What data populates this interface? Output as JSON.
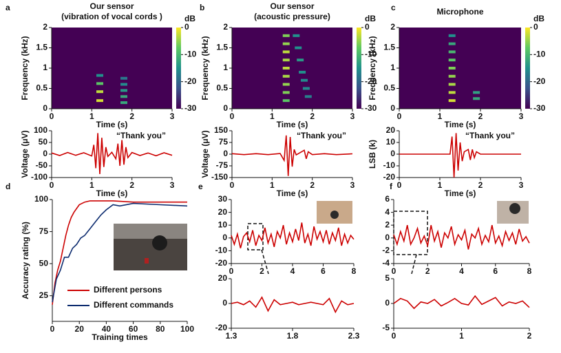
{
  "chart_data": [
    {
      "type": "heatmap",
      "panel_label": "a",
      "title": "Our sensor",
      "subtitle": "(vibration of vocal cords )",
      "xlabel": "Time (s)",
      "ylabel": "Frequency (kHz)",
      "xlim": [
        0,
        3
      ],
      "xticks": [
        0,
        1,
        2,
        3
      ],
      "ylim": [
        0,
        2
      ],
      "yticks": [
        0,
        0.5,
        1,
        1.5,
        2
      ],
      "colorbar_label": "dB",
      "clim": [
        -30,
        0
      ],
      "cticks": [
        0,
        -10,
        -20,
        -30
      ],
      "points": {
        "x": [
          1.2,
          1.2,
          1.2,
          1.2,
          1.8,
          1.8,
          1.8,
          1.8,
          1.8
        ],
        "y": [
          0.2,
          0.42,
          0.62,
          0.82,
          0.15,
          0.3,
          0.45,
          0.6,
          0.75
        ],
        "values": [
          -2,
          -3,
          -8,
          -15,
          -12,
          -12,
          -14,
          -16,
          -18
        ]
      }
    },
    {
      "type": "line",
      "xlabel": "Time (s)",
      "ylabel": "Voltage (μV)",
      "annotation": "“Thank you”",
      "color": "#cc0000",
      "xlim": [
        0,
        3
      ],
      "xticks": [
        0,
        1,
        2,
        3
      ],
      "ylim": [
        -100,
        100
      ],
      "yticks": [
        -100,
        -50,
        0,
        50,
        100
      ],
      "x": [
        0,
        0.2,
        0.4,
        0.6,
        0.8,
        1.0,
        1.05,
        1.1,
        1.15,
        1.2,
        1.25,
        1.3,
        1.35,
        1.4,
        1.5,
        1.6,
        1.65,
        1.7,
        1.75,
        1.8,
        1.85,
        1.9,
        2.0,
        2.2,
        2.4,
        2.6,
        2.8,
        3.0
      ],
      "values": [
        5,
        -6,
        7,
        -5,
        6,
        -8,
        40,
        -60,
        90,
        -85,
        70,
        -55,
        30,
        -10,
        8,
        -20,
        45,
        -50,
        60,
        -45,
        30,
        -15,
        7,
        -6,
        5,
        -7,
        6,
        -5
      ]
    },
    {
      "type": "heatmap",
      "panel_label": "b",
      "title": "Our sensor",
      "subtitle": "(acoustic pressure)",
      "xlabel": "Time (s)",
      "ylabel": "Frequency (kHz)",
      "xlim": [
        0,
        3
      ],
      "xticks": [
        0,
        1,
        2,
        3
      ],
      "ylim": [
        0,
        2
      ],
      "yticks": [
        0,
        0.5,
        1,
        1.5,
        2
      ],
      "colorbar_label": "dB",
      "clim": [
        -30,
        0
      ],
      "cticks": [
        0,
        -10,
        -20,
        -30
      ],
      "points": {
        "x": [
          1.35,
          1.35,
          1.35,
          1.35,
          1.35,
          1.35,
          1.35,
          1.35,
          1.35,
          1.6,
          1.65,
          1.7,
          1.75,
          1.8,
          1.85,
          1.9
        ],
        "y": [
          0.2,
          0.4,
          0.6,
          0.8,
          1.0,
          1.2,
          1.4,
          1.6,
          1.8,
          1.8,
          1.5,
          1.2,
          0.9,
          0.7,
          0.5,
          0.3
        ],
        "values": [
          -8,
          -6,
          -5,
          -4,
          -3,
          -4,
          -3,
          -5,
          -6,
          -15,
          -15,
          -14,
          -15,
          -16,
          -16,
          -17
        ]
      }
    },
    {
      "type": "line",
      "xlabel": "Time (s)",
      "ylabel": "Voltage (μV)",
      "annotation": "“Thank you”",
      "color": "#cc0000",
      "xlim": [
        0,
        3
      ],
      "xticks": [
        0,
        1,
        2,
        3
      ],
      "ylim": [
        -150,
        150
      ],
      "yticks": [
        -150,
        -75,
        0,
        75,
        150
      ],
      "x": [
        0,
        0.3,
        0.6,
        0.9,
        1.2,
        1.3,
        1.35,
        1.4,
        1.45,
        1.5,
        1.55,
        1.6,
        1.8,
        1.85,
        1.9,
        2.0,
        2.3,
        2.6,
        3.0
      ],
      "values": [
        3,
        -3,
        3,
        -3,
        4,
        -40,
        120,
        -140,
        110,
        -80,
        30,
        -5,
        25,
        -30,
        15,
        -3,
        3,
        -3,
        2
      ]
    },
    {
      "type": "heatmap",
      "panel_label": "c",
      "title": "Microphone",
      "xlabel": "Time (s)",
      "ylabel": "Frequency (kHz)",
      "xlim": [
        0,
        3
      ],
      "xticks": [
        0,
        1,
        2,
        3
      ],
      "ylim": [
        0,
        2
      ],
      "yticks": [
        0,
        0.5,
        1,
        1.5,
        2
      ],
      "colorbar_label": "dB",
      "clim": [
        -30,
        0
      ],
      "cticks": [
        0,
        -10,
        -20,
        -30
      ],
      "points": {
        "x": [
          1.3,
          1.3,
          1.3,
          1.3,
          1.3,
          1.3,
          1.3,
          1.3,
          1.3,
          1.9,
          1.9
        ],
        "y": [
          0.2,
          0.4,
          0.6,
          0.8,
          1.0,
          1.2,
          1.4,
          1.6,
          1.8,
          0.25,
          0.4
        ],
        "values": [
          -2,
          -3,
          -4,
          -5,
          -6,
          -8,
          -10,
          -12,
          -15,
          -12,
          -13
        ]
      }
    },
    {
      "type": "line",
      "xlabel": "Time (s)",
      "ylabel": "LSB (k)",
      "annotation": "“Thank you”",
      "color": "#cc0000",
      "xlim": [
        0,
        3
      ],
      "xticks": [
        0,
        1,
        2,
        3
      ],
      "ylim": [
        -20,
        20
      ],
      "yticks": [
        -20,
        -10,
        0,
        10,
        20
      ],
      "x": [
        0,
        0.5,
        1.0,
        1.25,
        1.3,
        1.35,
        1.4,
        1.45,
        1.5,
        1.55,
        1.6,
        1.7,
        1.75,
        1.8,
        1.85,
        1.9,
        2.0,
        2.5,
        3.0
      ],
      "values": [
        0,
        0,
        0,
        0,
        15,
        -20,
        18,
        -14,
        10,
        -6,
        2,
        4,
        -5,
        4,
        -3,
        2,
        0,
        0,
        0
      ]
    },
    {
      "type": "line",
      "panel_label": "d",
      "xlabel": "Training times",
      "ylabel": "Accuracy rating (%)",
      "legend": "lower center",
      "xlim": [
        0,
        100
      ],
      "xticks": [
        0,
        20,
        40,
        60,
        80,
        100
      ],
      "ylim": [
        5,
        100
      ],
      "yticks": [
        25,
        50,
        75,
        100
      ],
      "series": [
        {
          "name": "Different persons",
          "color": "#cc0000",
          "x": [
            0,
            2,
            4,
            6,
            8,
            10,
            12,
            14,
            16,
            18,
            20,
            24,
            28,
            35,
            45,
            60,
            80,
            100
          ],
          "values": [
            18,
            35,
            45,
            52,
            62,
            72,
            80,
            86,
            90,
            93,
            96,
            98,
            99,
            99,
            99,
            98,
            98,
            98
          ]
        },
        {
          "name": "Different commands",
          "color": "#0b2a6e",
          "x": [
            0,
            3,
            6,
            9,
            12,
            15,
            18,
            21,
            24,
            27,
            30,
            33,
            36,
            40,
            45,
            50,
            60,
            80,
            100
          ],
          "values": [
            20,
            38,
            45,
            55,
            55,
            62,
            65,
            70,
            72,
            76,
            80,
            84,
            88,
            92,
            96,
            95,
            97,
            96,
            95
          ]
        }
      ]
    },
    {
      "type": "line",
      "panel_label": "e",
      "color": "#cc0000",
      "xlim": [
        0,
        8
      ],
      "xticks": [
        0,
        2,
        4,
        6,
        8
      ],
      "ylim": [
        -20,
        30
      ],
      "yticks": [
        -20,
        -10,
        0,
        10,
        20,
        30
      ],
      "x": [
        0,
        0.2,
        0.4,
        0.6,
        0.8,
        1,
        1.2,
        1.4,
        1.6,
        1.8,
        2,
        2.2,
        2.4,
        2.6,
        2.8,
        3,
        3.2,
        3.4,
        3.6,
        3.8,
        4,
        4.2,
        4.4,
        4.6,
        4.8,
        5,
        5.2,
        5.4,
        5.6,
        5.8,
        6,
        6.2,
        6.4,
        6.6,
        6.8,
        7,
        7.2,
        7.4,
        7.6,
        7.8,
        8
      ],
      "values": [
        2,
        -5,
        3,
        -8,
        1,
        4,
        -3,
        6,
        -6,
        2,
        -2,
        8,
        -4,
        3,
        -7,
        5,
        0,
        10,
        -5,
        4,
        -3,
        7,
        -2,
        12,
        -4,
        3,
        -6,
        9,
        -1,
        5,
        -3,
        6,
        -5,
        4,
        -2,
        8,
        -6,
        3,
        -4,
        2,
        -1
      ]
    },
    {
      "type": "line",
      "color": "#cc0000",
      "xlim": [
        1.3,
        2.3
      ],
      "xticks": [
        1.3,
        1.8,
        2.3
      ],
      "ylim": [
        -20,
        20
      ],
      "yticks": [
        -20,
        0,
        20
      ],
      "x": [
        1.3,
        1.35,
        1.4,
        1.45,
        1.5,
        1.55,
        1.6,
        1.65,
        1.7,
        1.75,
        1.8,
        1.85,
        1.9,
        1.95,
        2.0,
        2.05,
        2.1,
        2.15,
        2.2,
        2.25,
        2.3
      ],
      "values": [
        0,
        1,
        -1,
        2,
        -3,
        5,
        -6,
        3,
        -1,
        0,
        1,
        -1,
        0,
        1,
        0,
        -1,
        4,
        -7,
        2,
        -1,
        0
      ]
    },
    {
      "type": "line",
      "panel_label": "f",
      "color": "#cc0000",
      "xlim": [
        0,
        8
      ],
      "xticks": [
        0,
        2,
        4,
        6,
        8
      ],
      "ylim": [
        -4,
        6
      ],
      "yticks": [
        -4,
        -2,
        0,
        2,
        4,
        6
      ],
      "x": [
        0,
        0.2,
        0.4,
        0.6,
        0.8,
        1,
        1.2,
        1.4,
        1.6,
        1.8,
        2,
        2.2,
        2.4,
        2.6,
        2.8,
        3,
        3.2,
        3.4,
        3.6,
        3.8,
        4,
        4.2,
        4.4,
        4.6,
        4.8,
        5,
        5.2,
        5.4,
        5.6,
        5.8,
        6,
        6.2,
        6.4,
        6.6,
        6.8,
        7,
        7.2,
        7.4,
        7.6,
        7.8,
        8
      ],
      "values": [
        0.5,
        -1,
        1,
        -0.5,
        2,
        -1,
        0,
        1.5,
        -0.8,
        0.3,
        -1.2,
        2,
        -0.5,
        1,
        -1.5,
        0.8,
        0,
        1.8,
        -1,
        0.5,
        -0.3,
        1.2,
        -1.8,
        0.6,
        0,
        1.5,
        -1,
        0.4,
        -0.6,
        2,
        -0.8,
        0.3,
        -1.2,
        1,
        -0.4,
        0.8,
        -1,
        1.4,
        -0.5,
        0.2,
        -0.8
      ]
    },
    {
      "type": "line",
      "color": "#cc0000",
      "xlim": [
        0,
        2
      ],
      "xticks": [
        0,
        1,
        2
      ],
      "ylim": [
        -5,
        5
      ],
      "yticks": [
        -5,
        0,
        5
      ],
      "x": [
        0,
        0.1,
        0.2,
        0.3,
        0.4,
        0.5,
        0.6,
        0.7,
        0.8,
        0.9,
        1.0,
        1.1,
        1.2,
        1.3,
        1.4,
        1.5,
        1.6,
        1.7,
        1.8,
        1.9,
        2.0
      ],
      "values": [
        0,
        1,
        0.5,
        -1,
        0.3,
        0,
        0.8,
        -0.5,
        0.2,
        1,
        0,
        -0.3,
        1.5,
        -0.2,
        0.5,
        1.2,
        -0.5,
        0.3,
        0,
        0.5,
        -0.8
      ]
    }
  ]
}
